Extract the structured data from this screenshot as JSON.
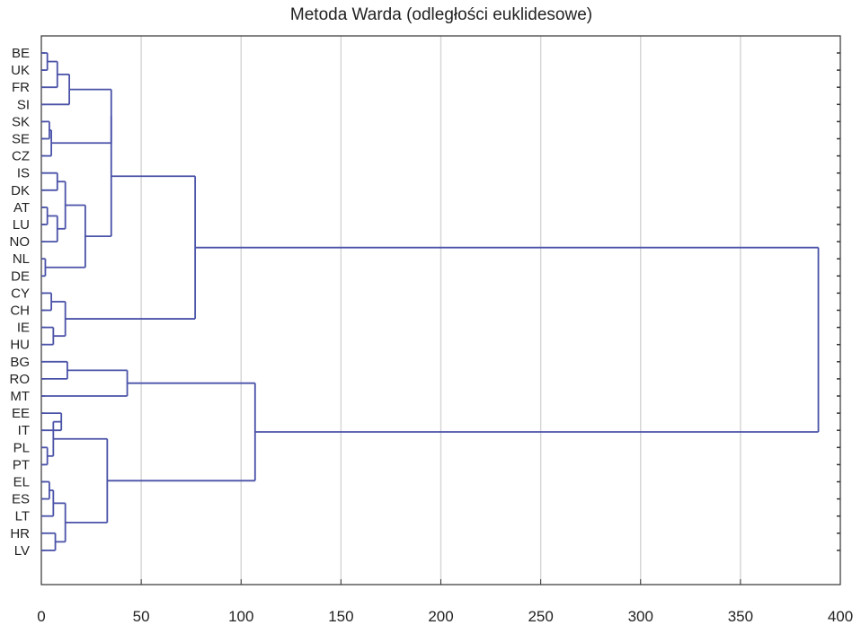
{
  "chart_data": {
    "type": "dendrogram",
    "title": "Metoda Warda (odległości euklidesowe)",
    "xlim": [
      0,
      400
    ],
    "x_ticks": [
      0,
      50,
      100,
      150,
      200,
      250,
      300,
      350,
      400
    ],
    "grid": "vertical",
    "orientation": "horizontal",
    "leaves": [
      "BE",
      "UK",
      "FR",
      "SI",
      "SK",
      "SE",
      "CZ",
      "IS",
      "DK",
      "AT",
      "LU",
      "NO",
      "NL",
      "DE",
      "CY",
      "CH",
      "IE",
      "HU",
      "BG",
      "RO",
      "MT",
      "EE",
      "IT",
      "PL",
      "PT",
      "EL",
      "ES",
      "LT",
      "HR",
      "LV"
    ],
    "merges": [
      {
        "a": "BE",
        "b": "UK",
        "height": 3
      },
      {
        "a": "BE+UK",
        "b": "FR",
        "height": 8
      },
      {
        "a": "SK",
        "b": "SE",
        "height": 4
      },
      {
        "a": "SK+SE",
        "b": "CZ",
        "height": 5
      },
      {
        "a": "BE+UK+FR",
        "b": "SI",
        "height": 14
      },
      {
        "a": "BE..SI",
        "b": "SK+SE+CZ",
        "height": 35
      },
      {
        "a": "IS",
        "b": "DK",
        "height": 8
      },
      {
        "a": "AT",
        "b": "LU",
        "height": 3
      },
      {
        "a": "AT+LU",
        "b": "NO",
        "height": 8
      },
      {
        "a": "IS+DK",
        "b": "AT+LU+NO",
        "height": 12
      },
      {
        "a": "NL",
        "b": "DE",
        "height": 2
      },
      {
        "a": "IS..NO",
        "b": "NL+DE",
        "height": 22
      },
      {
        "a": "BE..CZ",
        "b": "IS..DE",
        "height": 35
      },
      {
        "a": "CY",
        "b": "CH",
        "height": 5
      },
      {
        "a": "IE",
        "b": "HU",
        "height": 6
      },
      {
        "a": "CY+CH",
        "b": "IE+HU",
        "height": 12
      },
      {
        "a": "BE..DE",
        "b": "CY..HU",
        "height": 77
      },
      {
        "a": "BG",
        "b": "RO",
        "height": 13
      },
      {
        "a": "BG+RO",
        "b": "MT",
        "height": 43
      },
      {
        "a": "EE",
        "b": "IT",
        "height": 10
      },
      {
        "a": "PL",
        "b": "PT",
        "height": 3
      },
      {
        "a": "EE+IT",
        "b": "PL+PT",
        "height": 6
      },
      {
        "a": "EL",
        "b": "ES",
        "height": 4
      },
      {
        "a": "EL+ES",
        "b": "LT",
        "height": 6
      },
      {
        "a": "HR",
        "b": "LV",
        "height": 7
      },
      {
        "a": "EL+ES+LT",
        "b": "HR+LV",
        "height": 12
      },
      {
        "a": "EE..PT",
        "b": "EL..LV",
        "height": 33
      },
      {
        "a": "BG+RO+MT",
        "b": "EE..LV",
        "height": 107
      },
      {
        "a": "BE..HU",
        "b": "BG..LV",
        "height": 389
      }
    ]
  }
}
